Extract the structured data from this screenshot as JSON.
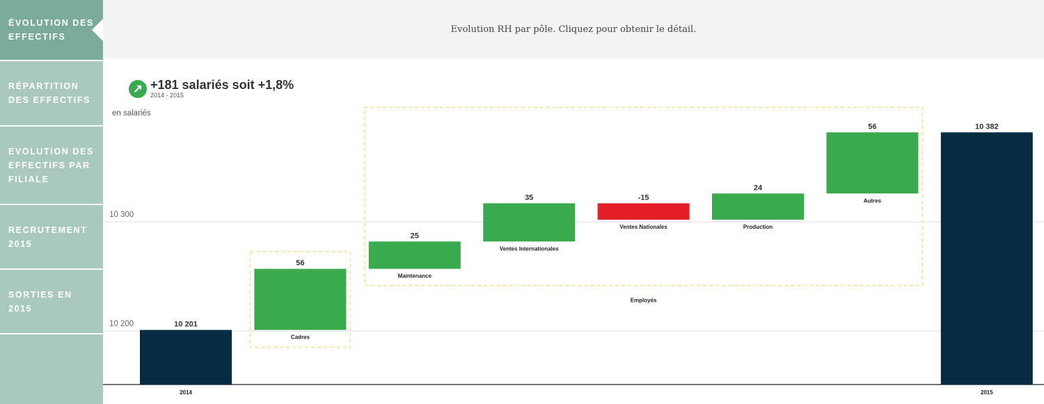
{
  "sidebar": {
    "items": [
      {
        "label": "Évolution des effectifs",
        "active": true
      },
      {
        "label": "Répartition des effectifs",
        "active": false
      },
      {
        "label": "Evolution des effectifs par filiale",
        "active": false
      },
      {
        "label": "Recrutement 2015",
        "active": false
      },
      {
        "label": "Sorties en 2015",
        "active": false
      }
    ]
  },
  "header": {
    "text": "Evolution RH par pôle. Cliquez pour obtenir le détail."
  },
  "kpi": {
    "icon": "arrow-up-right-icon",
    "headline": "+181 salariés soit +1,8%",
    "period": "2014 - 2015"
  },
  "chart_data": {
    "type": "waterfall",
    "unit_label": "en salariés",
    "y_ticks": [
      10200,
      10300
    ],
    "y_tick_labels": [
      "10 200",
      "10 300"
    ],
    "ylim": [
      10151,
      10400
    ],
    "colors": {
      "total": "#062b43",
      "increase": "#3aaa4f",
      "decrease": "#e31e26",
      "group_box": "#f8e08a"
    },
    "bars": [
      {
        "category": "2014",
        "kind": "total",
        "value": 10201,
        "label": "10 201"
      },
      {
        "category": "Cadres",
        "kind": "delta",
        "value": 56,
        "label": "56"
      },
      {
        "category": "Maintenance",
        "kind": "delta",
        "value": 25,
        "label": "25"
      },
      {
        "category": "Ventes Internationales",
        "kind": "delta",
        "value": 35,
        "label": "35"
      },
      {
        "category": "Ventes Nationales",
        "kind": "delta",
        "value": -15,
        "label": "-15"
      },
      {
        "category": "Production",
        "kind": "delta",
        "value": 24,
        "label": "24"
      },
      {
        "category": "Autres",
        "kind": "delta",
        "value": 56,
        "label": "56"
      },
      {
        "category": "2015",
        "kind": "total",
        "value": 10382,
        "label": "10 382"
      }
    ],
    "groups": [
      {
        "label": "",
        "from": 1,
        "to": 1
      },
      {
        "label": "Employés",
        "from": 2,
        "to": 6
      }
    ]
  }
}
